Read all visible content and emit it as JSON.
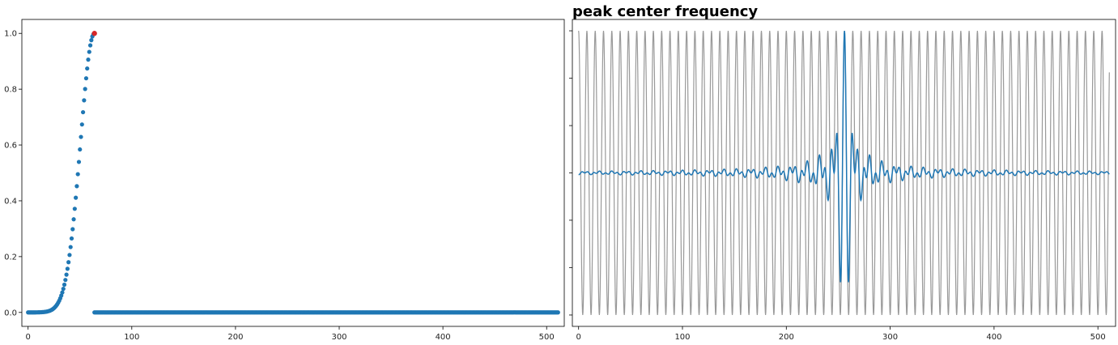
{
  "chart_data": [
    {
      "type": "scatter",
      "title": "",
      "xlabel": "",
      "ylabel": "",
      "xlim": [
        -6,
        517
      ],
      "ylim": [
        -0.05,
        1.05
      ],
      "xticks": [
        0,
        100,
        200,
        300,
        400,
        500
      ],
      "yticks": [
        0.0,
        0.2,
        0.4,
        0.6,
        0.8,
        1.0
      ],
      "xtick_labels": [
        "0",
        "100",
        "200",
        "300",
        "400",
        "500"
      ],
      "ytick_labels": [
        "0.0",
        "0.2",
        "0.4",
        "0.6",
        "0.8",
        "1.0"
      ],
      "grid": false,
      "series": [
        {
          "color": "#1f77b4",
          "x_start": 0,
          "x_end": 511,
          "nonzero_x_end": 63,
          "gaussian_center": 64,
          "gaussian_sigma": 13.5
        }
      ],
      "highlight_point": {
        "x": 64,
        "y": 1.0,
        "color": "#d62728"
      }
    },
    {
      "type": "line",
      "title": "peak center frequency",
      "xlabel": "",
      "ylabel": "",
      "xlim": [
        -6,
        517
      ],
      "ylim": [
        -1.08,
        1.08
      ],
      "xticks": [
        0,
        100,
        200,
        300,
        400,
        500
      ],
      "xtick_labels": [
        "0",
        "100",
        "200",
        "300",
        "400",
        "500"
      ],
      "yticks": [
        -1.0,
        -0.666,
        -0.333,
        0.0,
        0.333,
        0.666,
        1.0
      ],
      "ytick_labels": [],
      "grid": false,
      "series": [
        {
          "color": "#999999",
          "x_start": 0,
          "x_end": 511,
          "function": "cos(2*pi*64*x/512)"
        },
        {
          "color": "#1f77b4",
          "x_start": 0,
          "x_end": 511,
          "function": "sinc((x-256)/10) * cos(2*pi*64*(x-256)/512)"
        }
      ]
    }
  ]
}
